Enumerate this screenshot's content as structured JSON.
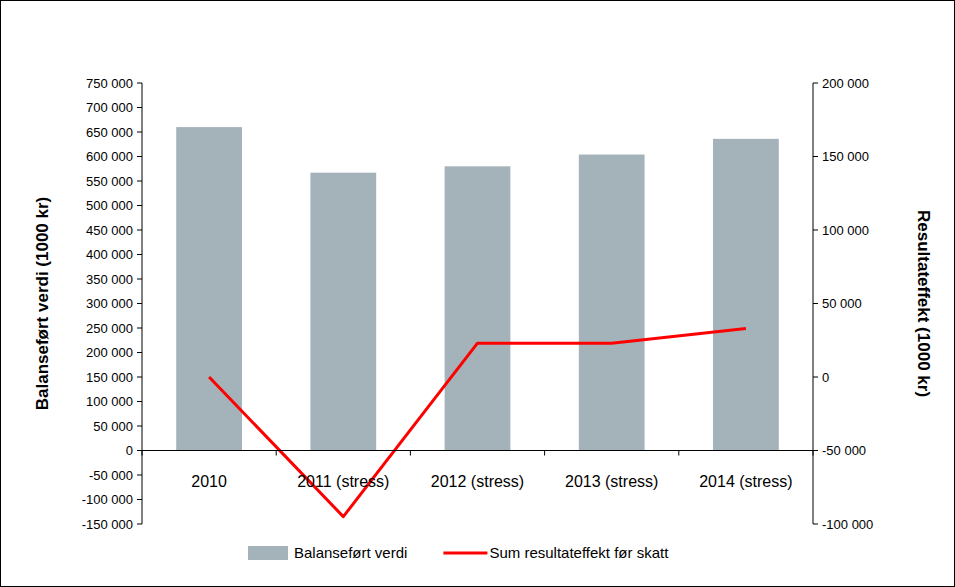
{
  "chart_data": {
    "type": "bar",
    "categories": [
      "2010",
      "2011 (stress)",
      "2012 (stress)",
      "2013 (stress)",
      "2014 (stress)"
    ],
    "ylabel": "Balanseført verdi (1000 kr)",
    "y2label": "Resultateffekt (1000 kr)",
    "series": [
      {
        "name": "Balanseført verdi",
        "type": "bar",
        "color": "#a4b3ba",
        "values": [
          660000,
          567000,
          580000,
          604000,
          636000
        ]
      },
      {
        "name": "Sum resultateffekt før skatt",
        "type": "line",
        "axis": "y2",
        "color": "#ff0000",
        "values": [
          0,
          -95000,
          23000,
          23000,
          33000
        ]
      }
    ],
    "ylim": [
      -150000,
      750000
    ],
    "yticks": [
      {
        "value": -150000,
        "label": "-150 000"
      },
      {
        "value": -100000,
        "label": "-100 000"
      },
      {
        "value": -50000,
        "label": "-50 000"
      },
      0,
      {
        "value": 50000,
        "label": "50 000"
      },
      {
        "value": 100000,
        "label": "100 000"
      },
      {
        "value": 150000,
        "label": "150 000"
      },
      {
        "value": 200000,
        "label": "200 000"
      },
      {
        "value": 250000,
        "label": "250 000"
      },
      {
        "value": 300000,
        "label": "300 000"
      },
      {
        "value": 350000,
        "label": "350 000"
      },
      {
        "value": 400000,
        "label": "400 000"
      },
      {
        "value": 450000,
        "label": "450 000"
      },
      {
        "value": 500000,
        "label": "500 000"
      },
      {
        "value": 550000,
        "label": "550 000"
      },
      {
        "value": 600000,
        "label": "600 000"
      },
      {
        "value": 650000,
        "label": "650 000"
      },
      {
        "value": 700000,
        "label": "700 000"
      },
      {
        "value": 750000,
        "label": "750 000"
      }
    ],
    "y2lim": [
      -100000,
      200000
    ],
    "y2ticks": [
      {
        "value": -100000,
        "label": "-100 000"
      },
      {
        "value": -50000,
        "label": "-50 000"
      },
      0,
      {
        "value": 50000,
        "label": "50 000"
      },
      {
        "value": 100000,
        "label": "100 000"
      },
      {
        "value": 150000,
        "label": "150 000"
      },
      {
        "value": 200000,
        "label": "200 000"
      }
    ],
    "grid": false,
    "legend": "bottom"
  }
}
